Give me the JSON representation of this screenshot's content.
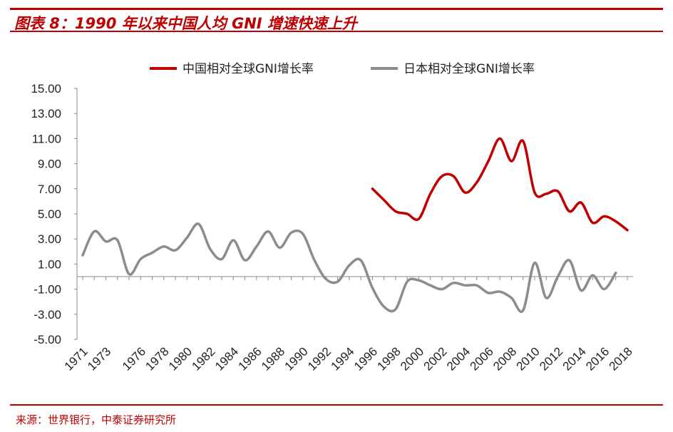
{
  "header": {
    "title": "图表 8：1990 年以来中国人均 GNI 增速快速上升",
    "accent_color": "#c00000"
  },
  "footer": {
    "source": "来源：世界银行，中泰证券研究所"
  },
  "chart_data": {
    "type": "line",
    "title": "",
    "xlabel": "",
    "ylabel": "",
    "ylim": [
      -5,
      15
    ],
    "yticks": [
      "15.00",
      "13.00",
      "11.00",
      "9.00",
      "7.00",
      "5.00",
      "3.00",
      "1.00",
      "-1.00",
      "-3.00",
      "-5.00"
    ],
    "xticks": [
      "1971",
      "1973",
      "1976",
      "1978",
      "1980",
      "1982",
      "1984",
      "1986",
      "1988",
      "1990",
      "1992",
      "1994",
      "1996",
      "1998",
      "2000",
      "2002",
      "2004",
      "2006",
      "2008",
      "2010",
      "2012",
      "2014",
      "2016",
      "2018"
    ],
    "legend_position": "top",
    "grid": false,
    "x": [
      1971,
      1972,
      1973,
      1974,
      1975,
      1976,
      1977,
      1978,
      1979,
      1980,
      1981,
      1982,
      1983,
      1984,
      1985,
      1986,
      1987,
      1988,
      1989,
      1990,
      1991,
      1992,
      1993,
      1994,
      1995,
      1996,
      1997,
      1998,
      1999,
      2000,
      2001,
      2002,
      2003,
      2004,
      2005,
      2006,
      2007,
      2008,
      2009,
      2010,
      2011,
      2012,
      2013,
      2014,
      2015,
      2016,
      2017,
      2018
    ],
    "series": [
      {
        "name": "中国相对全球GNI增长率",
        "color": "#c00000",
        "values": [
          null,
          null,
          null,
          null,
          null,
          null,
          null,
          null,
          null,
          null,
          null,
          null,
          null,
          null,
          null,
          null,
          null,
          null,
          null,
          null,
          null,
          null,
          null,
          null,
          null,
          7.0,
          6.1,
          5.2,
          5.0,
          4.6,
          6.6,
          8.0,
          8.0,
          6.7,
          7.5,
          9.2,
          11.0,
          9.2,
          10.8,
          6.7,
          6.6,
          6.8,
          5.2,
          5.9,
          4.3,
          4.8,
          4.4,
          3.7
        ]
      },
      {
        "name": "日本相对全球GNI增长率",
        "color": "#8c8c8c",
        "values": [
          1.7,
          3.6,
          2.8,
          2.9,
          0.2,
          1.4,
          1.9,
          2.4,
          2.1,
          3.1,
          4.2,
          2.2,
          1.4,
          2.9,
          1.3,
          2.4,
          3.6,
          2.3,
          3.5,
          3.4,
          1.3,
          -0.2,
          -0.4,
          0.9,
          1.3,
          -0.9,
          -2.4,
          -2.6,
          -0.4,
          -0.3,
          -0.7,
          -1.0,
          -0.5,
          -0.7,
          -0.7,
          -1.3,
          -1.2,
          -1.7,
          -2.7,
          1.1,
          -1.7,
          0.0,
          1.3,
          -1.1,
          0.1,
          -1.0,
          0.3,
          null
        ]
      }
    ]
  }
}
